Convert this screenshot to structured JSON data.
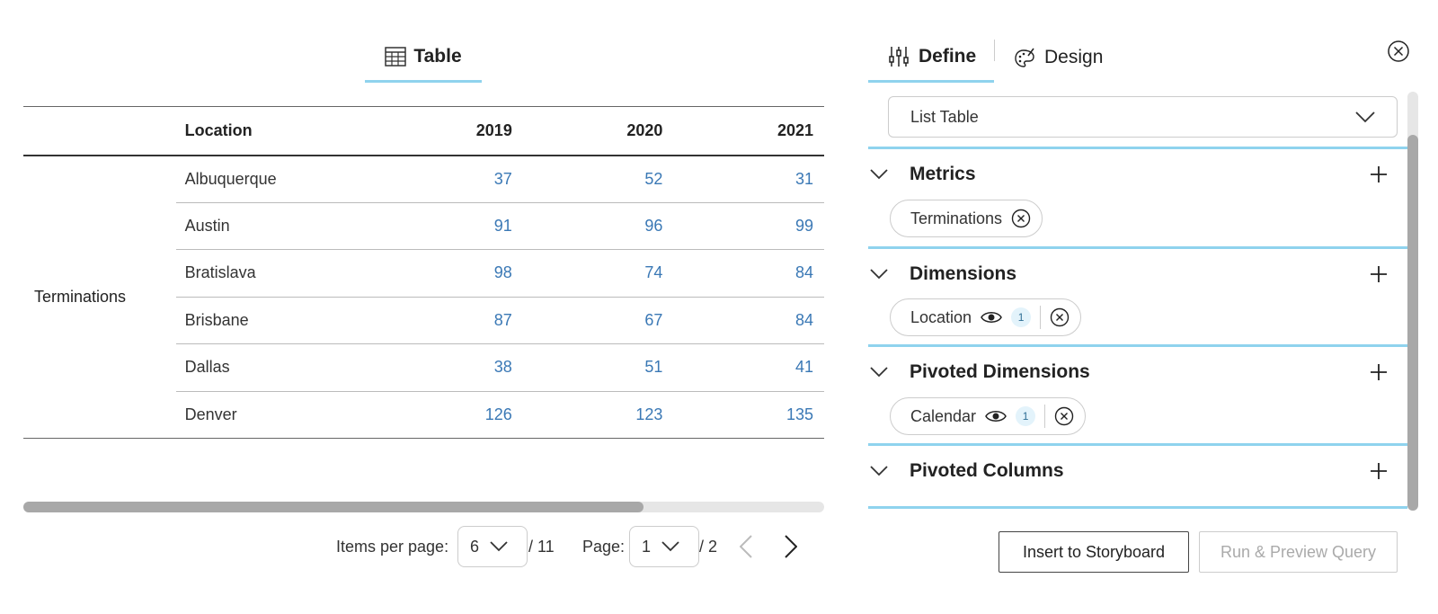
{
  "left_tab": {
    "label": "Table",
    "icon": "table-icon"
  },
  "table": {
    "headers": [
      "",
      "Location",
      "2019",
      "2020",
      "2021"
    ],
    "metric_label": "Terminations",
    "rows": [
      {
        "location": "Albuquerque",
        "values": [
          "37",
          "52",
          "31"
        ]
      },
      {
        "location": "Austin",
        "values": [
          "91",
          "96",
          "99"
        ]
      },
      {
        "location": "Bratislava",
        "values": [
          "98",
          "74",
          "84"
        ]
      },
      {
        "location": "Brisbane",
        "values": [
          "87",
          "67",
          "84"
        ]
      },
      {
        "location": "Dallas",
        "values": [
          "38",
          "51",
          "41"
        ]
      },
      {
        "location": "Denver",
        "values": [
          "126",
          "123",
          "135"
        ]
      }
    ]
  },
  "pagination": {
    "items_per_page_label": "Items per page:",
    "items_per_page_value": "6",
    "items_total": "/ 11",
    "page_label": "Page:",
    "page_value": "1",
    "page_total": "/ 2"
  },
  "right_tabs": {
    "define": {
      "label": "Define",
      "icon": "sliders-icon"
    },
    "design": {
      "label": "Design",
      "icon": "palette-icon"
    }
  },
  "table_type_dropdown": {
    "value": "List Table"
  },
  "sections": {
    "metrics": {
      "title": "Metrics",
      "pill": {
        "label": "Terminations"
      }
    },
    "dimensions": {
      "title": "Dimensions",
      "pill": {
        "label": "Location",
        "badge": "1"
      }
    },
    "pivoted_dimensions": {
      "title": "Pivoted Dimensions",
      "pill": {
        "label": "Calendar",
        "badge": "1"
      }
    },
    "pivoted_columns": {
      "title": "Pivoted Columns"
    }
  },
  "buttons": {
    "insert": "Insert to Storyboard",
    "run_preview": "Run & Preview Query"
  },
  "colors": {
    "accent": "#8fd3ee",
    "value_text": "#3a78b5",
    "disabled_text": "#aaaaaa"
  }
}
